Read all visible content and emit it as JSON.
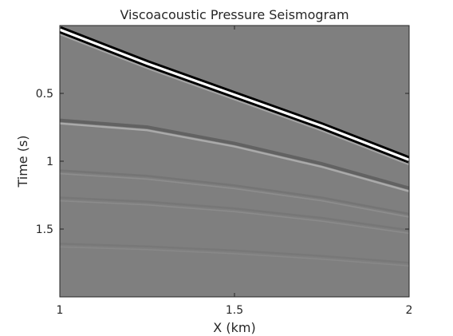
{
  "chart_data": {
    "type": "heatmap",
    "title": "Viscoacoustic Pressure Seismogram",
    "xlabel": "X (km)",
    "ylabel": "Time (s)",
    "xlim": [
      1,
      2
    ],
    "ylim": [
      2,
      0
    ],
    "y_reversed": true,
    "xticks": [
      1,
      1.5,
      2
    ],
    "xtick_labels": [
      "1",
      "1.5",
      "2"
    ],
    "yticks": [
      0.5,
      1,
      1.5
    ],
    "ytick_labels": [
      "0.5",
      "1",
      "1.5"
    ],
    "colormap": "gray",
    "grid": false,
    "colors": {
      "background_field": "#7f7f7f",
      "axes_text": "#262626",
      "frame": "#262626"
    },
    "events": [
      {
        "name": "direct-wave",
        "x": [
          1.0,
          1.25,
          1.5,
          1.75,
          2.0
        ],
        "t": [
          0.03,
          0.28,
          0.51,
          0.74,
          0.99
        ],
        "amplitude": 1.0
      },
      {
        "name": "reflection-1",
        "x": [
          1.0,
          1.25,
          1.5,
          1.75,
          2.0
        ],
        "t": [
          0.71,
          0.76,
          0.88,
          1.03,
          1.21
        ],
        "amplitude": 0.35
      },
      {
        "name": "reflection-2",
        "x": [
          1.0,
          1.25,
          1.5,
          1.75,
          2.0
        ],
        "t": [
          1.08,
          1.12,
          1.19,
          1.28,
          1.4
        ],
        "amplitude": 0.12
      },
      {
        "name": "reflection-3",
        "x": [
          1.0,
          1.25,
          1.5,
          1.75,
          2.0
        ],
        "t": [
          1.28,
          1.31,
          1.36,
          1.43,
          1.52
        ],
        "amplitude": 0.1
      },
      {
        "name": "reflection-4",
        "x": [
          1.0,
          1.25,
          1.5,
          1.75,
          2.0
        ],
        "t": [
          1.62,
          1.64,
          1.67,
          1.71,
          1.76
        ],
        "amplitude": 0.08
      }
    ]
  }
}
